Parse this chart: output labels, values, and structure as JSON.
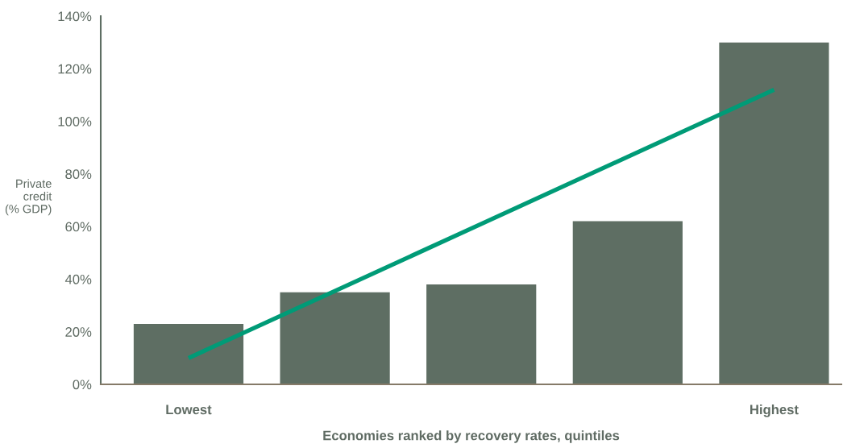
{
  "chart_data": {
    "type": "bar",
    "xlabel": "Economies ranked by recovery rates, quintiles",
    "ylabel": "Private\ncredit\n(% GDP)",
    "categories": [
      "Lowest",
      null,
      null,
      null,
      "Highest"
    ],
    "series": [
      {
        "color": "#5e6e63",
        "values": [
          23,
          35,
          38,
          62,
          130
        ]
      },
      {
        "type": "line",
        "color": "#009b77",
        "values": [
          10,
          35.5,
          61,
          86.5,
          112
        ]
      }
    ],
    "ylim": [
      0,
      140
    ],
    "yticks": [
      {
        "value": 0,
        "label": "0%"
      },
      {
        "value": 20,
        "label": "20%"
      },
      {
        "value": 40,
        "label": "40%"
      },
      {
        "value": 60,
        "label": "60%"
      },
      {
        "value": 80,
        "label": "80%"
      },
      {
        "value": 100,
        "label": "100%"
      },
      {
        "value": 120,
        "label": "120%"
      },
      {
        "value": 140,
        "label": "140%"
      }
    ]
  }
}
